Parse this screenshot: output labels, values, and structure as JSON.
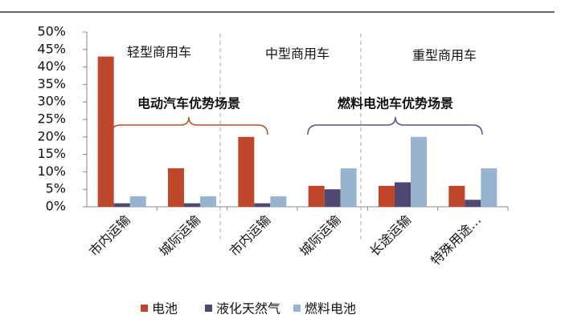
{
  "chart_data": {
    "type": "bar",
    "categories": [
      "市内运输",
      "城际运输",
      "市内运输",
      "城际运输",
      "长途运输",
      "特殊用途…"
    ],
    "series": [
      {
        "name": "电池",
        "color": "#c0462a",
        "values": [
          43,
          11,
          20,
          6,
          6,
          6
        ]
      },
      {
        "name": "液化天然气",
        "color": "#4e4873",
        "values": [
          1,
          1,
          1,
          5,
          7,
          2
        ]
      },
      {
        "name": "燃料电池",
        "color": "#96b4d0",
        "values": [
          3,
          3,
          3,
          11,
          20,
          11
        ]
      }
    ],
    "ylim": [
      0,
      50
    ],
    "yticks": [
      {
        "value": 0,
        "label": "0%"
      },
      {
        "value": 5,
        "label": "5%"
      },
      {
        "value": 10,
        "label": "10%"
      },
      {
        "value": 15,
        "label": "15%"
      },
      {
        "value": 20,
        "label": "20%"
      },
      {
        "value": 25,
        "label": "25%"
      },
      {
        "value": 30,
        "label": "30%"
      },
      {
        "value": 35,
        "label": "35%"
      },
      {
        "value": 40,
        "label": "40%"
      },
      {
        "value": 45,
        "label": "45%"
      },
      {
        "value": 50,
        "label": "50%"
      }
    ],
    "annotations": [
      "轻型商用车",
      "中型商用车",
      "重型商用车",
      "电动汽车优势场景",
      "燃料电池车优势场景"
    ],
    "legend": "bottom"
  }
}
